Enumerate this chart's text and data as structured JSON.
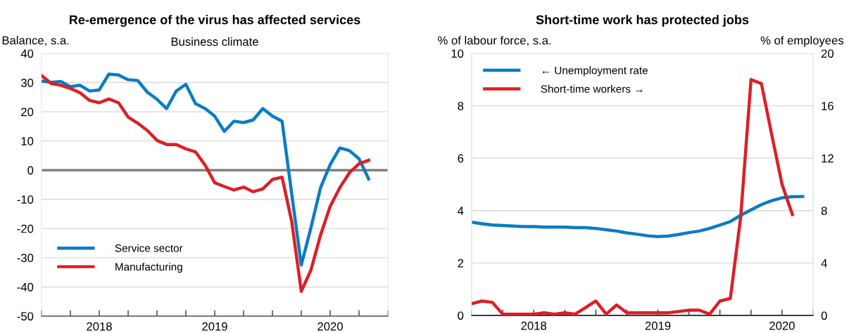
{
  "chart_data": [
    {
      "type": "line",
      "title": "Re-emergence of the virus has affected services",
      "subtitle": "Business climate",
      "ylabel": "Balance, s.a.",
      "x": [
        "2018-01",
        "2018-02",
        "2018-03",
        "2018-04",
        "2018-05",
        "2018-06",
        "2018-07",
        "2018-08",
        "2018-09",
        "2018-10",
        "2018-11",
        "2018-12",
        "2019-01",
        "2019-02",
        "2019-03",
        "2019-04",
        "2019-05",
        "2019-06",
        "2019-07",
        "2019-08",
        "2019-09",
        "2019-10",
        "2019-11",
        "2019-12",
        "2020-01",
        "2020-02",
        "2020-03",
        "2020-04",
        "2020-05",
        "2020-06",
        "2020-07",
        "2020-08",
        "2020-09",
        "2020-10",
        "2020-11"
      ],
      "series": [
        {
          "name": "Service sector",
          "color": "#0a7cc4",
          "values": [
            30.5,
            30.1,
            30.4,
            28.6,
            29.1,
            27.1,
            27.5,
            32.9,
            32.6,
            31.0,
            30.7,
            26.7,
            24.3,
            21.1,
            27.1,
            29.4,
            22.8,
            21.1,
            18.5,
            13.3,
            16.8,
            16.3,
            17.2,
            21.1,
            18.5,
            16.8,
            -8,
            -32.5,
            -19.7,
            -6,
            1.9,
            7.6,
            6.7,
            3.9,
            -3.0
          ]
        },
        {
          "name": "Manufacturing",
          "color": "#dc1f26",
          "values": [
            32.4,
            29.7,
            29.1,
            28.0,
            26.5,
            23.9,
            23.1,
            24.4,
            23.1,
            18.2,
            16.1,
            13.6,
            10.2,
            8.8,
            8.8,
            7.3,
            6.3,
            1.7,
            -4.3,
            -5.6,
            -6.8,
            -5.8,
            -7.4,
            -6.4,
            -3.2,
            -2.4,
            -17.5,
            -41.5,
            -34.2,
            -22.2,
            -12.4,
            -6,
            -0.9,
            2.2,
            3.4
          ]
        }
      ],
      "xlim": [
        "2018-01",
        "2021-01"
      ],
      "xticks": [
        {
          "value": "2018-01",
          "label": null
        },
        {
          "value": "2018-04",
          "label": null
        },
        {
          "value": "2018-07",
          "label": "2018"
        },
        {
          "value": "2018-10",
          "label": null
        },
        {
          "value": "2019-01",
          "label": null
        },
        {
          "value": "2019-04",
          "label": null
        },
        {
          "value": "2019-07",
          "label": "2019"
        },
        {
          "value": "2019-10",
          "label": null
        },
        {
          "value": "2020-01",
          "label": null
        },
        {
          "value": "2020-04",
          "label": null
        },
        {
          "value": "2020-07",
          "label": "2020"
        },
        {
          "value": "2020-10",
          "label": null
        },
        {
          "value": "2021-01",
          "label": null
        }
      ],
      "ylim": [
        -50,
        40
      ],
      "yticks": [
        -50,
        -40,
        -30,
        -20,
        -10,
        0,
        10,
        20,
        30,
        40
      ],
      "ref_lines": [
        {
          "axis": "y",
          "value": 0,
          "color": "#7f7f7f"
        }
      ],
      "grid": "y",
      "legend": "bottom left",
      "line_style": "solid",
      "marker": "none"
    },
    {
      "type": "line",
      "title": "Short-time work has protected jobs",
      "ylabel": "% of labour force, s.a.",
      "y2label": "% of employees",
      "x": [
        "2018-01",
        "2018-02",
        "2018-03",
        "2018-04",
        "2018-05",
        "2018-06",
        "2018-07",
        "2018-08",
        "2018-09",
        "2018-10",
        "2018-11",
        "2018-12",
        "2019-01",
        "2019-02",
        "2019-03",
        "2019-04",
        "2019-05",
        "2019-06",
        "2019-07",
        "2019-08",
        "2019-09",
        "2019-10",
        "2019-11",
        "2019-12",
        "2020-01",
        "2020-02",
        "2020-03",
        "2020-04",
        "2020-05",
        "2020-06",
        "2020-07",
        "2020-08",
        "2020-09"
      ],
      "series": [
        {
          "name": "← Unemployment rate",
          "color": "#0a7cc4",
          "values": [
            3.56,
            3.5,
            3.45,
            3.43,
            3.41,
            3.39,
            3.39,
            3.37,
            3.37,
            3.37,
            3.35,
            3.35,
            3.32,
            3.27,
            3.22,
            3.15,
            3.1,
            3.04,
            3.01,
            3.03,
            3.09,
            3.16,
            3.22,
            3.32,
            3.45,
            3.58,
            3.82,
            4.03,
            4.23,
            4.38,
            4.49,
            4.53,
            4.54
          ]
        },
        {
          "name": "Short-time workers →",
          "color": "#dc1f26",
          "axis": "y2",
          "x": [
            "2018-01",
            "2018-02",
            "2018-03",
            "2018-04",
            "2018-05",
            "2018-06",
            "2018-07",
            "2018-08",
            "2018-09",
            "2018-10",
            "2018-11",
            "2018-12",
            "2019-01",
            "2019-02",
            "2019-03",
            "2019-04",
            "2019-05",
            "2019-06",
            "2019-07",
            "2019-08",
            "2019-09",
            "2019-10",
            "2019-11",
            "2019-12",
            "2020-01",
            "2020-02",
            "2020-03",
            "2020-04",
            "2020-05",
            "2020-06",
            "2020-07",
            "2020-08"
          ],
          "values": [
            0.9,
            1.1,
            1.0,
            0.1,
            0.1,
            0.1,
            0.1,
            0.2,
            0.1,
            0.2,
            0.1,
            0.6,
            1.1,
            0.1,
            0.8,
            0.2,
            0.2,
            0.2,
            0.2,
            0.2,
            0.3,
            0.4,
            0.4,
            0.1,
            1.1,
            1.3,
            7.5,
            18.0,
            17.7,
            13.8,
            10.0,
            7.7
          ]
        }
      ],
      "xlim": [
        "2018-01",
        "2020-10"
      ],
      "xticks": [
        {
          "value": "2018-01",
          "label": null
        },
        {
          "value": "2018-04",
          "label": null
        },
        {
          "value": "2018-07",
          "label": "2018"
        },
        {
          "value": "2018-10",
          "label": null
        },
        {
          "value": "2019-01",
          "label": null
        },
        {
          "value": "2019-04",
          "label": null
        },
        {
          "value": "2019-07",
          "label": "2019"
        },
        {
          "value": "2019-10",
          "label": null
        },
        {
          "value": "2020-01",
          "label": null
        },
        {
          "value": "2020-04",
          "label": null
        },
        {
          "value": "2020-07",
          "label": "2020"
        },
        {
          "value": "2020-10",
          "label": null
        }
      ],
      "ylim": [
        0,
        10
      ],
      "yticks": [
        0,
        2,
        4,
        6,
        8,
        10
      ],
      "y2lim": [
        0,
        20
      ],
      "y2ticks": [
        0,
        4,
        8,
        12,
        16,
        20
      ],
      "grid": "y",
      "legend": "top left",
      "line_style": "solid",
      "marker": "none"
    }
  ]
}
